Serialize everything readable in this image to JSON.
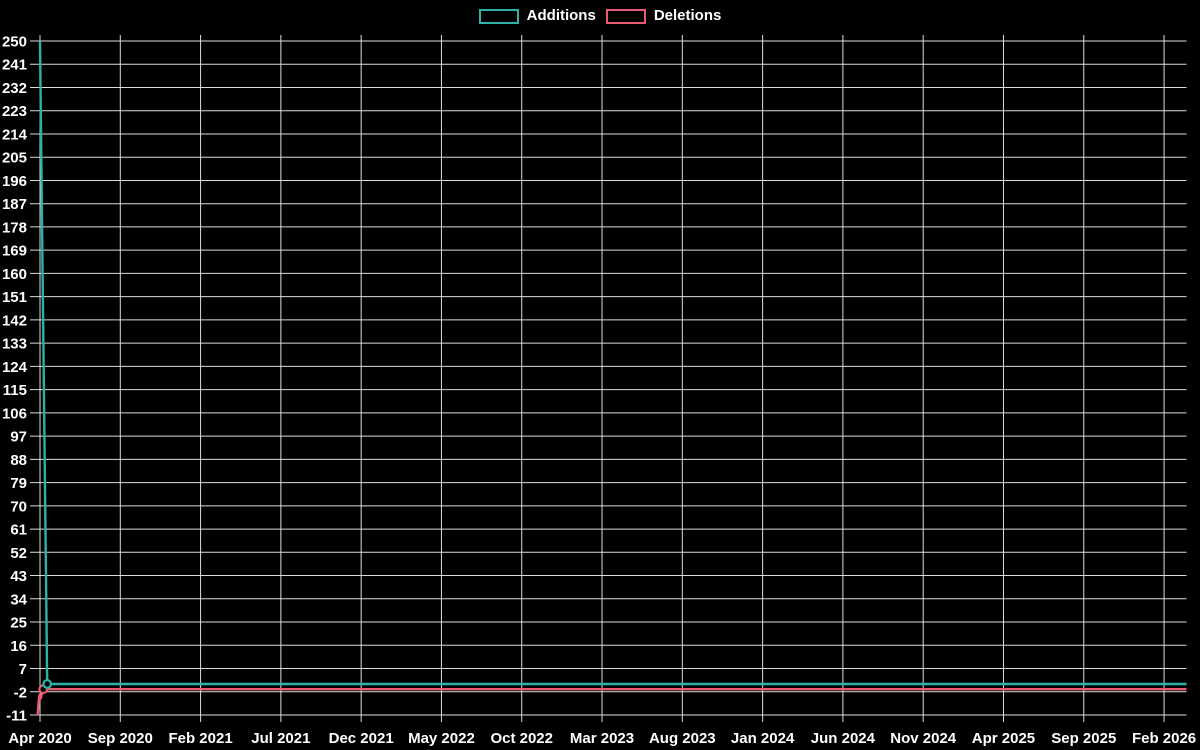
{
  "legend": {
    "items": [
      {
        "id": "additions",
        "label": "Additions",
        "color": "#2fb1aa"
      },
      {
        "id": "deletions",
        "label": "Deletions",
        "color": "#e85a6f"
      }
    ]
  },
  "chart_data": {
    "type": "line",
    "title": "",
    "background": "#000000",
    "grid": true,
    "grid_color": "#dcdcdc",
    "text_color": "#ffffff",
    "legend_position": "top-center",
    "x_tick_labels": [
      "Apr 2020",
      "Sep 2020",
      "Feb 2021",
      "Jul 2021",
      "Dec 2021",
      "May 2022",
      "Oct 2022",
      "Mar 2023",
      "Aug 2023",
      "Jan 2024",
      "Jun 2024",
      "Nov 2024",
      "Apr 2025",
      "Sep 2025",
      "Feb 2026"
    ],
    "months_per_tick": 5,
    "x_data_end_month": 71.4,
    "y_tick_labels": [
      250,
      241,
      232,
      223,
      214,
      205,
      196,
      187,
      178,
      169,
      160,
      151,
      142,
      133,
      124,
      115,
      106,
      97,
      88,
      79,
      70,
      61,
      52,
      43,
      34,
      25,
      16,
      7,
      -2,
      -11
    ],
    "y_min": -11,
    "y_max": 250,
    "y_step": 9,
    "series": [
      {
        "name": "Deletions",
        "color": "#e85a6f",
        "points": [
          [
            -0.15,
            -11
          ],
          [
            -0.05,
            -3.5
          ],
          [
            0.05,
            -4.5
          ],
          [
            0.2,
            -1
          ],
          [
            71.4,
            -1
          ]
        ],
        "marker_points": [
          [
            0.2,
            -1
          ]
        ]
      },
      {
        "name": "Additions",
        "color": "#2fb1aa",
        "points": [
          [
            0,
            250
          ],
          [
            0.45,
            1
          ],
          [
            71.4,
            1
          ]
        ],
        "marker_points": [
          [
            0.45,
            1
          ]
        ]
      }
    ]
  }
}
